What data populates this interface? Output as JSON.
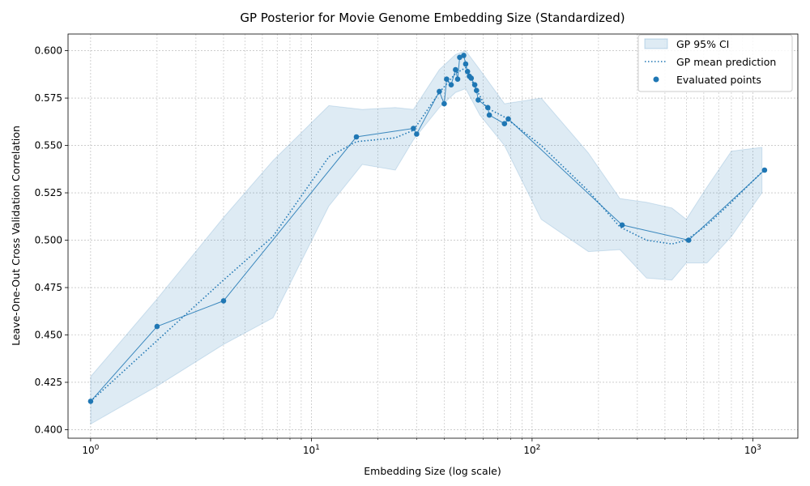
{
  "chart_data": {
    "type": "line",
    "title": "GP Posterior for Movie Genome Embedding Size (Standardized)",
    "xlabel": "Embedding Size (log scale)",
    "ylabel": "Leave-One-Out Cross Validation Correlation",
    "xscale": "log",
    "xlim": [
      0.79,
      1600
    ],
    "ylim": [
      0.3955,
      0.6088
    ],
    "grid": true,
    "legend_position": "top-right",
    "x_tick_labels": [
      {
        "value": 1,
        "base": "10",
        "exp": "0"
      },
      {
        "value": 10,
        "base": "10",
        "exp": "1"
      },
      {
        "value": 100,
        "base": "10",
        "exp": "2"
      },
      {
        "value": 1000,
        "base": "10",
        "exp": "3"
      }
    ],
    "y_ticks": [
      0.4,
      0.425,
      0.45,
      0.475,
      0.5,
      0.525,
      0.55,
      0.575,
      0.6
    ],
    "y_tick_labels": [
      "0.400",
      "0.425",
      "0.450",
      "0.475",
      "0.500",
      "0.525",
      "0.550",
      "0.575",
      "0.600"
    ],
    "colors": {
      "primary": "#1f77b4",
      "band_fill": "#1f77b4",
      "grid": "#b0b0b0"
    },
    "series": [
      {
        "name": "GP 95% CI",
        "kind": "band",
        "x": [
          1,
          2,
          4,
          6.7,
          12,
          17,
          24,
          29,
          38,
          45,
          50,
          58,
          75,
          110,
          180,
          250,
          330,
          430,
          500,
          620,
          800,
          1100
        ],
        "lower": [
          0.403,
          0.423,
          0.445,
          0.459,
          0.518,
          0.54,
          0.537,
          0.553,
          0.57,
          0.578,
          0.58,
          0.566,
          0.55,
          0.511,
          0.494,
          0.495,
          0.48,
          0.479,
          0.488,
          0.488,
          0.502,
          0.525
        ],
        "upper": [
          0.428,
          0.469,
          0.512,
          0.542,
          0.571,
          0.569,
          0.57,
          0.569,
          0.59,
          0.598,
          0.6,
          0.59,
          0.572,
          0.575,
          0.546,
          0.522,
          0.52,
          0.517,
          0.511,
          0.528,
          0.547,
          0.549
        ]
      },
      {
        "name": "GP mean prediction",
        "kind": "dotted_line",
        "x": [
          1,
          2,
          4,
          6.7,
          12,
          16,
          24,
          29,
          38,
          45,
          50,
          55,
          62,
          75,
          110,
          180,
          250,
          330,
          430,
          500,
          620,
          800,
          1100
        ],
        "y": [
          0.415,
          0.447,
          0.479,
          0.502,
          0.544,
          0.552,
          0.554,
          0.558,
          0.578,
          0.588,
          0.591,
          0.581,
          0.57,
          0.565,
          0.55,
          0.526,
          0.507,
          0.5,
          0.498,
          0.5,
          0.508,
          0.52,
          0.536
        ]
      },
      {
        "name": "Evaluated points",
        "kind": "scatter",
        "x": [
          1,
          2,
          4,
          16,
          29,
          30,
          38,
          40,
          41,
          43,
          45,
          46,
          47,
          49,
          50,
          51,
          52,
          53,
          55,
          56,
          57,
          63,
          64,
          75,
          78,
          256,
          512,
          1131
        ],
        "y": [
          0.415,
          0.4545,
          0.468,
          0.5545,
          0.559,
          0.556,
          0.5785,
          0.572,
          0.585,
          0.582,
          0.59,
          0.585,
          0.5965,
          0.5975,
          0.593,
          0.589,
          0.5865,
          0.5855,
          0.582,
          0.579,
          0.574,
          0.57,
          0.566,
          0.5615,
          0.564,
          0.508,
          0.5,
          0.537
        ]
      }
    ]
  }
}
